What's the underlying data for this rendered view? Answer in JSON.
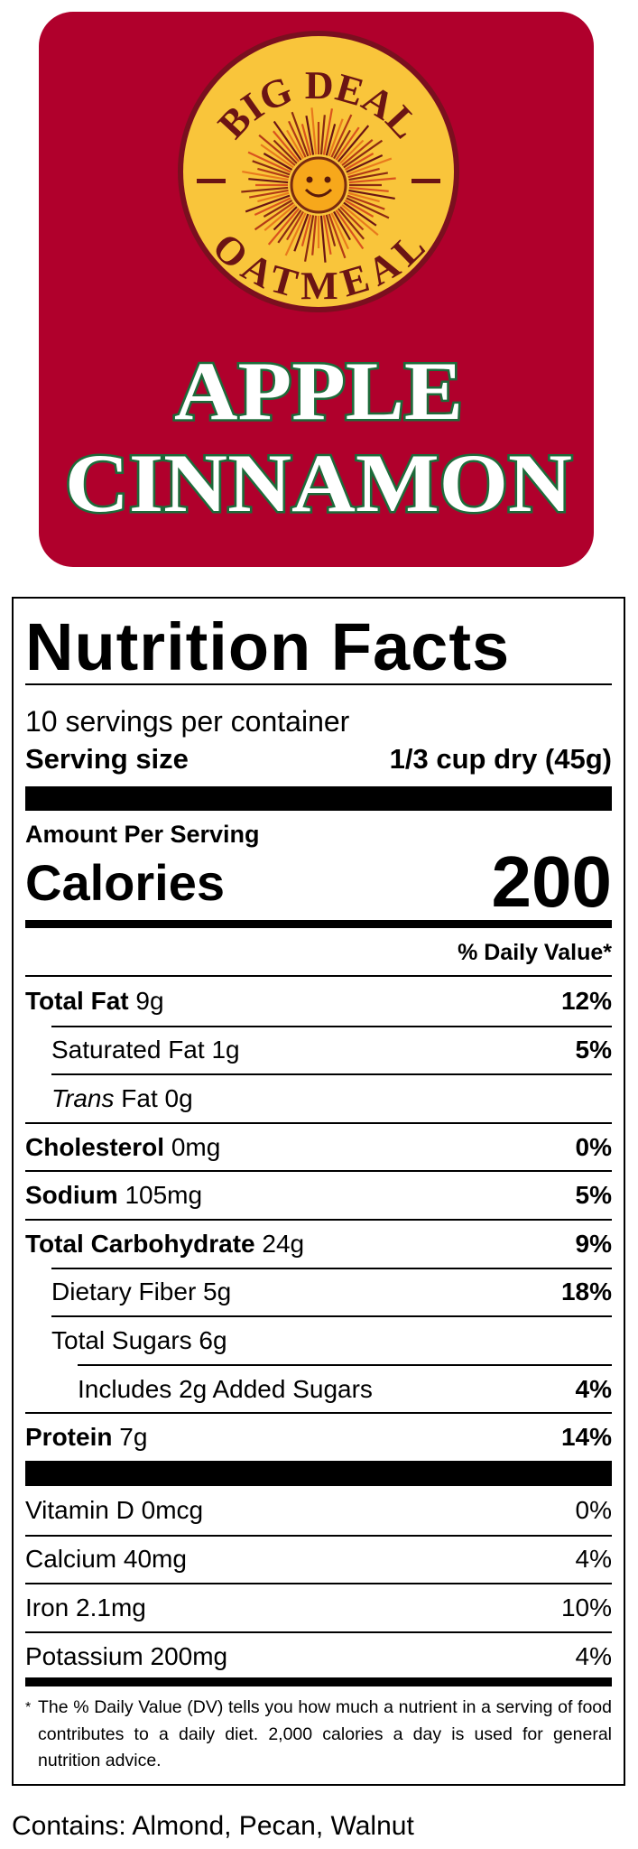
{
  "header": {
    "brand_top": "BIG DEAL",
    "brand_bottom": "OATMEAL",
    "flavor_line1": "APPLE",
    "flavor_line2": "CINNAMON"
  },
  "nutrition": {
    "title": "Nutrition Facts",
    "servings": "10 servings per container",
    "serving_size_label": "Serving size",
    "serving_size_value": "1/3 cup dry (45g)",
    "amount_per_serving": "Amount Per Serving",
    "calories_label": "Calories",
    "calories_value": "200",
    "daily_value_header": "% Daily Value*",
    "rows": [
      {
        "label": "Total Fat",
        "amount": "9g",
        "dv": "12%"
      },
      {
        "label": "Saturated Fat",
        "amount": "1g",
        "dv": "5%"
      },
      {
        "label_prefix": "Trans",
        "label": "Fat",
        "amount": "0g"
      },
      {
        "label": "Cholesterol",
        "amount": "0mg",
        "dv": "0%"
      },
      {
        "label": "Sodium",
        "amount": "105mg",
        "dv": "5%"
      },
      {
        "label": "Total Carbohydrate",
        "amount": "24g",
        "dv": "9%"
      },
      {
        "label": "Dietary Fiber",
        "amount": "5g",
        "dv": "18%"
      },
      {
        "label": "Total Sugars",
        "amount": "6g"
      },
      {
        "label": "Includes 2g Added Sugars",
        "dv": "4%"
      },
      {
        "label": "Protein",
        "amount": "7g",
        "dv": "14%"
      }
    ],
    "vitamins": [
      {
        "label": "Vitamin D 0mcg",
        "dv": "0%"
      },
      {
        "label": "Calcium 40mg",
        "dv": "4%"
      },
      {
        "label": "Iron 2.1mg",
        "dv": "10%"
      },
      {
        "label": "Potassium 200mg",
        "dv": "4%"
      }
    ],
    "footnote_mark": "*",
    "footnote": "The % Daily Value (DV) tells you how much a nutrient in a serving of food contributes to a daily diet. 2,000 calories a day is used for general nutrition advice."
  },
  "allergens": "Contains: Almond, Pecan, Walnut"
}
